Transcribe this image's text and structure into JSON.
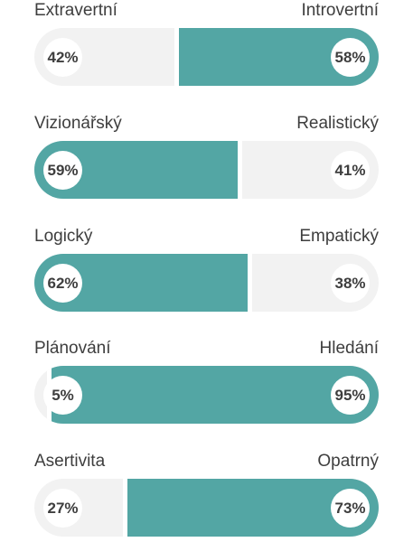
{
  "colors": {
    "accent": "#53a6a4",
    "track": "#f2f2f2",
    "text": "#3e3e3e"
  },
  "traits": [
    {
      "left_label": "Extravertní",
      "right_label": "Introvertní",
      "left_pct": "42%",
      "right_pct": "58%",
      "left_value": 42,
      "right_value": 58,
      "dominant": "right"
    },
    {
      "left_label": "Vizionářský",
      "right_label": "Realistický",
      "left_pct": "59%",
      "right_pct": "41%",
      "left_value": 59,
      "right_value": 41,
      "dominant": "left"
    },
    {
      "left_label": "Logický",
      "right_label": "Empatický",
      "left_pct": "62%",
      "right_pct": "38%",
      "left_value": 62,
      "right_value": 38,
      "dominant": "left"
    },
    {
      "left_label": "Plánování",
      "right_label": "Hledání",
      "left_pct": "5%",
      "right_pct": "95%",
      "left_value": 5,
      "right_value": 95,
      "dominant": "right"
    },
    {
      "left_label": "Asertivita",
      "right_label": "Opatrný",
      "left_pct": "27%",
      "right_pct": "73%",
      "left_value": 27,
      "right_value": 73,
      "dominant": "right"
    }
  ]
}
